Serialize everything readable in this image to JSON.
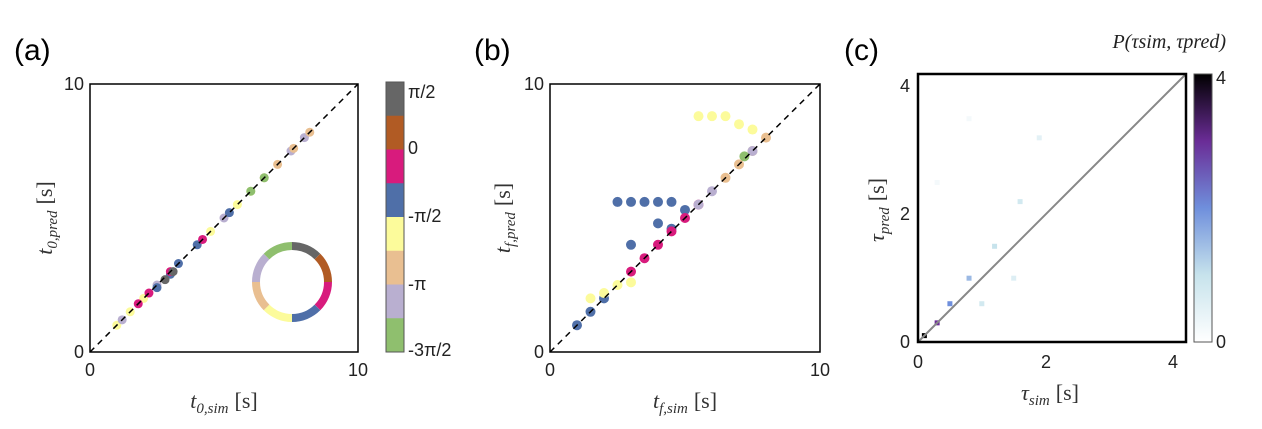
{
  "palette": {
    "-3pi/2": "#8fbf6e",
    "-pi": "#b9afd0",
    "-pi_b": "#e9bf91",
    "-pi/2": "#fcfb9b",
    "-pi/2_b": "#4f6fa8",
    "0": "#d81b7d",
    "0_b": "#b15b24",
    "pi/2": "#666666"
  },
  "panels": {
    "a": {
      "label": "(a)",
      "xlabel_sym": "t",
      "xlabel_sub": "0,sim",
      "xlabel_unit": "[s]",
      "ylabel_sym": "t",
      "ylabel_sub": "0,pred",
      "ylabel_unit": "[s]",
      "xtick_labels": [
        "0",
        "10"
      ],
      "ytick_labels": [
        "0",
        "10"
      ],
      "colorbar_labels": [
        "π/2",
        "0",
        "-π/2",
        "-π",
        "-3π/2"
      ]
    },
    "b": {
      "label": "(b)",
      "xlabel_sym": "t",
      "xlabel_sub": "f,sim",
      "xlabel_unit": "[s]",
      "ylabel_sym": "t",
      "ylabel_sub": "f,pred",
      "ylabel_unit": "[s]",
      "xtick_labels": [
        "0",
        "10"
      ],
      "ytick_labels": [
        "0",
        "10"
      ]
    },
    "c": {
      "label": "(c)",
      "xlabel_sym": "τ",
      "xlabel_sub": "sim",
      "xlabel_unit": "[s]",
      "ylabel_sym": "τ",
      "ylabel_sub": "pred",
      "ylabel_unit": "[s]",
      "xtick_labels": [
        "0",
        "2",
        "4"
      ],
      "ytick_labels": [
        "0",
        "2",
        "4"
      ],
      "colorbar_title": "P(τsim, τpred)",
      "colorbar_labels": [
        "4",
        "0"
      ]
    }
  },
  "chart_data": [
    {
      "type": "scatter",
      "panel": "a",
      "xlim": [
        0,
        10
      ],
      "ylim": [
        0,
        10
      ],
      "reference_line": "y = x (dashed)",
      "colorbar_range": [
        "-3π/2",
        "π/2"
      ],
      "points_summary": "points lie along y=x from about 1 to 8.5",
      "series": [
        {
          "color": "#fcfb9b",
          "x": [
            1.0,
            1.5,
            2.0,
            4.5,
            5.5,
            6.0
          ],
          "y": [
            1.0,
            1.5,
            2.0,
            4.5,
            5.5,
            6.0
          ]
        },
        {
          "color": "#b9afd0",
          "x": [
            1.2,
            2.5,
            5.0,
            7.5,
            8.0
          ],
          "y": [
            1.2,
            2.5,
            5.0,
            7.5,
            8.0
          ]
        },
        {
          "color": "#4f6fa8",
          "x": [
            2.5,
            3.0,
            3.3,
            4.0,
            5.2
          ],
          "y": [
            2.4,
            2.9,
            3.3,
            4.0,
            5.2
          ]
        },
        {
          "color": "#d81b7d",
          "x": [
            1.8,
            2.2,
            3.0,
            4.2
          ],
          "y": [
            1.8,
            2.2,
            3.0,
            4.2
          ]
        },
        {
          "color": "#e9bf91",
          "x": [
            6.5,
            7.0,
            7.6,
            8.2
          ],
          "y": [
            6.5,
            7.0,
            7.6,
            8.2
          ]
        },
        {
          "color": "#8fbf6e",
          "x": [
            6.0,
            6.5
          ],
          "y": [
            6.0,
            6.5
          ]
        },
        {
          "color": "#666666",
          "x": [
            2.8,
            3.1
          ],
          "y": [
            2.7,
            3.0
          ]
        }
      ]
    },
    {
      "type": "scatter",
      "panel": "b",
      "xlim": [
        0,
        10
      ],
      "ylim": [
        0,
        10
      ],
      "reference_line": "y = x (dashed)",
      "series": [
        {
          "color": "#4f6fa8",
          "x": [
            1.0,
            1.5,
            2.0,
            2.5,
            3.0,
            3.5,
            4.0,
            4.5,
            5.0,
            3.0,
            4.0,
            4.5
          ],
          "y": [
            1.0,
            1.5,
            2.0,
            5.6,
            5.6,
            5.6,
            5.6,
            5.6,
            5.3,
            4.0,
            4.8,
            4.6
          ]
        },
        {
          "color": "#d81b7d",
          "x": [
            3.0,
            3.5,
            4.0,
            4.5,
            5.0,
            5.5
          ],
          "y": [
            3.0,
            3.5,
            4.0,
            4.5,
            5.0,
            5.5
          ]
        },
        {
          "color": "#fcfb9b",
          "x": [
            1.5,
            2.0,
            2.5,
            3.0,
            5.5,
            6.0,
            6.5,
            7.0,
            7.5
          ],
          "y": [
            2.0,
            2.2,
            2.5,
            2.6,
            8.8,
            8.8,
            8.8,
            8.5,
            8.3
          ]
        },
        {
          "color": "#e9bf91",
          "x": [
            6.5,
            7.0,
            7.5,
            8.0
          ],
          "y": [
            6.5,
            7.0,
            7.5,
            8.0
          ]
        },
        {
          "color": "#b9afd0",
          "x": [
            5.5,
            6.0,
            7.5
          ],
          "y": [
            5.5,
            6.0,
            7.5
          ]
        },
        {
          "color": "#8fbf6e",
          "x": [
            7.2
          ],
          "y": [
            7.3
          ]
        }
      ]
    },
    {
      "type": "heatmap",
      "panel": "c",
      "xlim": [
        0,
        4.2
      ],
      "ylim": [
        0,
        4.2
      ],
      "reference_line": "y = x (solid gray)",
      "colorbar_range": [
        0,
        4
      ],
      "description_values": [
        {
          "x": 0.1,
          "y": 0.1,
          "value": 4
        },
        {
          "x": 0.3,
          "y": 0.3,
          "value": 3
        },
        {
          "x": 0.5,
          "y": 0.6,
          "value": 2
        },
        {
          "x": 0.8,
          "y": 1.0,
          "value": 1.5
        },
        {
          "x": 1.2,
          "y": 1.5,
          "value": 1
        },
        {
          "x": 1.6,
          "y": 2.2,
          "value": 0.8
        },
        {
          "x": 1.9,
          "y": 3.2,
          "value": 0.5
        },
        {
          "x": 1.0,
          "y": 0.6,
          "value": 0.8
        },
        {
          "x": 1.5,
          "y": 1.0,
          "value": 0.6
        },
        {
          "x": 0.3,
          "y": 2.5,
          "value": 0.2
        },
        {
          "x": 0.8,
          "y": 3.5,
          "value": 0.2
        }
      ]
    }
  ]
}
